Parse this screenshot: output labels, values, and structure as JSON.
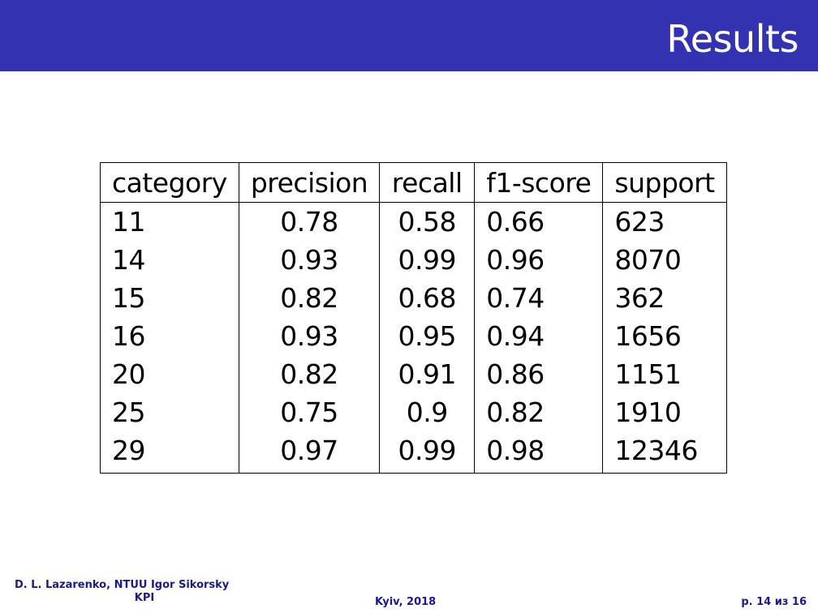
{
  "header": {
    "title": "Results",
    "bar_color": "#3333b2"
  },
  "table": {
    "columns": [
      "category",
      "precision",
      "recall",
      "f1-score",
      "support"
    ],
    "rows": [
      [
        "11",
        "0.78",
        "0.58",
        "0.66",
        "623"
      ],
      [
        "14",
        "0.93",
        "0.99",
        "0.96",
        "8070"
      ],
      [
        "15",
        "0.82",
        "0.68",
        "0.74",
        "362"
      ],
      [
        "16",
        "0.93",
        "0.95",
        "0.94",
        "1656"
      ],
      [
        "20",
        "0.82",
        "0.91",
        "0.86",
        "1151"
      ],
      [
        "25",
        "0.75",
        "0.9",
        "0.82",
        "1910"
      ],
      [
        "29",
        "0.97",
        "0.99",
        "0.98",
        "12346"
      ]
    ]
  },
  "footer": {
    "author_line1": "D. L. Lazarenko, NTUU Igor Sikorsky",
    "author_line2": "KPI",
    "place": "Kyiv, 2018",
    "page": "p. 14 из 16",
    "text_color": "#1a1a8c"
  }
}
